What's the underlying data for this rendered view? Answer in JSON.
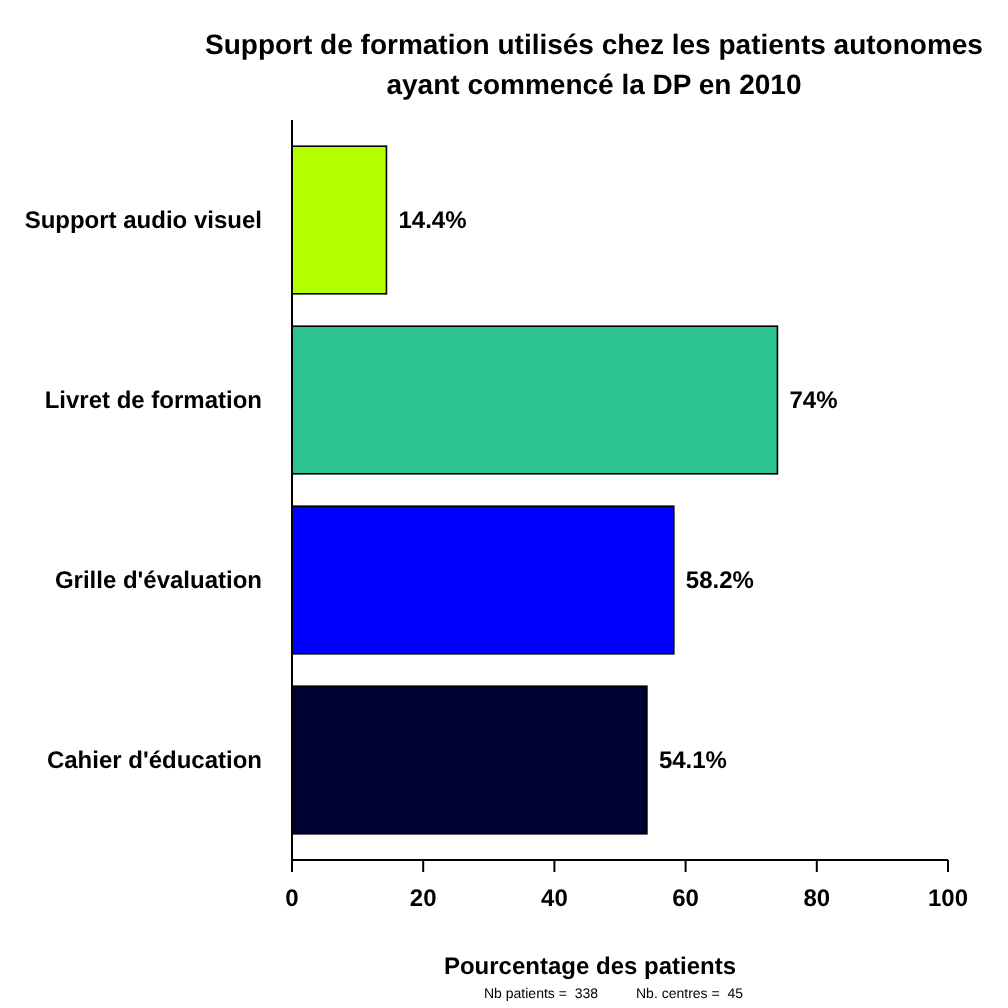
{
  "chart_data": {
    "type": "bar",
    "orientation": "horizontal",
    "title": "Support de formation utilisés chez les patients autonomes\nayant commencé la DP en 2010",
    "xlabel": "Pourcentage des patients",
    "categories": [
      "Support audio visuel",
      "Livret de formation",
      "Grille d'évaluation",
      "Cahier d'éducation"
    ],
    "values": [
      14.4,
      74,
      58.2,
      54.1
    ],
    "value_labels": [
      "14.4%",
      "74%",
      "58.2%",
      "54.1%"
    ],
    "colors": [
      "#b3ff00",
      "#2bc48f",
      "#0000ff",
      "#000033"
    ],
    "xlim": [
      0,
      100
    ],
    "xticks": [
      0,
      20,
      40,
      60,
      80,
      100
    ],
    "annotations": [
      "Nb patients =  338",
      "Nb. centres =  45"
    ]
  }
}
